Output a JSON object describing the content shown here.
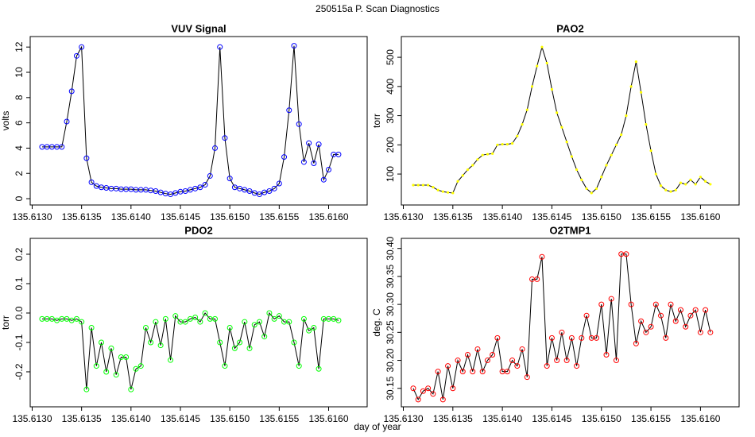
{
  "title": "250515a   P. Scan Diagnostics",
  "xlabel": "day of year",
  "chart_data": [
    {
      "type": "line",
      "title": "VUV Signal",
      "ylabel": "volts",
      "color": "#0000ff",
      "line_color": "#000000",
      "marker": "circle",
      "x": [
        135.6131,
        135.61315,
        135.6132,
        135.61325,
        135.6133,
        135.61335,
        135.6134,
        135.61345,
        135.6135,
        135.61355,
        135.6136,
        135.61365,
        135.6137,
        135.61375,
        135.6138,
        135.61385,
        135.6139,
        135.61395,
        135.614,
        135.61405,
        135.6141,
        135.61415,
        135.6142,
        135.61425,
        135.6143,
        135.61435,
        135.6144,
        135.61445,
        135.6145,
        135.61455,
        135.6146,
        135.61465,
        135.6147,
        135.61475,
        135.6148,
        135.61485,
        135.6149,
        135.61495,
        135.615,
        135.61505,
        135.6151,
        135.61515,
        135.6152,
        135.61525,
        135.6153,
        135.61535,
        135.6154,
        135.61545,
        135.6155,
        135.61555,
        135.6156,
        135.61565,
        135.6157,
        135.61575,
        135.6158,
        135.61585,
        135.6159,
        135.61595,
        135.616,
        135.61605,
        135.6161
      ],
      "values": [
        4.1,
        4.1,
        4.1,
        4.1,
        4.1,
        6.1,
        8.5,
        11.3,
        12.0,
        3.2,
        1.3,
        1.0,
        0.9,
        0.85,
        0.8,
        0.8,
        0.75,
        0.75,
        0.75,
        0.7,
        0.7,
        0.7,
        0.65,
        0.6,
        0.5,
        0.4,
        0.35,
        0.45,
        0.55,
        0.6,
        0.7,
        0.8,
        0.9,
        1.1,
        1.8,
        4.0,
        12.0,
        4.8,
        1.6,
        0.9,
        0.8,
        0.7,
        0.6,
        0.45,
        0.35,
        0.5,
        0.6,
        0.8,
        1.2,
        3.3,
        7.0,
        12.1,
        5.9,
        2.9,
        4.4,
        2.8,
        4.3,
        1.5,
        2.3,
        3.5,
        3.5
      ],
      "xlim": [
        135.61298,
        135.61639
      ],
      "ylim": [
        -0.5,
        12.83
      ],
      "xticks": [
        {
          "value": 135.613,
          "label": "135.6130"
        },
        135.6135,
        {
          "value": 135.614,
          "label": "135.6140"
        },
        135.6145,
        {
          "value": 135.615,
          "label": "135.6150"
        },
        135.6155,
        {
          "value": 135.616,
          "label": "135.6160"
        }
      ],
      "yticks": [
        0,
        2,
        4,
        6,
        8,
        10,
        12
      ]
    },
    {
      "type": "line",
      "title": "PAO2",
      "ylabel": "torr",
      "color": "#ffff00",
      "line_color": "#000000",
      "marker": "dot",
      "x": [
        135.6131,
        135.61315,
        135.6132,
        135.61325,
        135.6133,
        135.61335,
        135.6134,
        135.61345,
        135.6135,
        135.61355,
        135.6136,
        135.61365,
        135.6137,
        135.61375,
        135.6138,
        135.61385,
        135.6139,
        135.61395,
        135.614,
        135.61405,
        135.6141,
        135.61415,
        135.6142,
        135.61425,
        135.6143,
        135.61435,
        135.6144,
        135.61445,
        135.6145,
        135.61455,
        135.6146,
        135.61465,
        135.6147,
        135.61475,
        135.6148,
        135.61485,
        135.6149,
        135.61495,
        135.615,
        135.61505,
        135.6151,
        135.61515,
        135.6152,
        135.61525,
        135.6153,
        135.61535,
        135.6154,
        135.61545,
        135.6155,
        135.61555,
        135.6156,
        135.61565,
        135.6157,
        135.61575,
        135.6158,
        135.61585,
        135.6159,
        135.61595,
        135.616,
        135.61605,
        135.6161
      ],
      "values": [
        62,
        62,
        62,
        62,
        55,
        45,
        40,
        37,
        35,
        75,
        95,
        115,
        130,
        150,
        165,
        168,
        170,
        200,
        202,
        202,
        205,
        230,
        270,
        320,
        400,
        470,
        535,
        480,
        390,
        310,
        260,
        210,
        160,
        115,
        80,
        50,
        35,
        50,
        90,
        130,
        165,
        200,
        235,
        300,
        400,
        485,
        380,
        270,
        180,
        100,
        60,
        45,
        40,
        45,
        70,
        65,
        80,
        65,
        90,
        75,
        65
      ],
      "xlim": [
        135.61298,
        135.61639
      ],
      "ylim": [
        -6,
        571
      ],
      "xticks": [
        {
          "value": 135.613,
          "label": "135.6130"
        },
        135.6135,
        {
          "value": 135.614,
          "label": "135.6140"
        },
        135.6145,
        {
          "value": 135.615,
          "label": "135.6150"
        },
        135.6155,
        {
          "value": 135.616,
          "label": "135.6160"
        }
      ],
      "yticks": [
        100,
        200,
        300,
        400,
        500
      ]
    },
    {
      "type": "line",
      "title": "PDO2",
      "ylabel": "torr",
      "color": "#00ff00",
      "line_color": "#000000",
      "marker": "circle",
      "x": [
        135.6131,
        135.61315,
        135.6132,
        135.61325,
        135.6133,
        135.61335,
        135.6134,
        135.61345,
        135.6135,
        135.61355,
        135.6136,
        135.61365,
        135.6137,
        135.61375,
        135.6138,
        135.61385,
        135.6139,
        135.61395,
        135.614,
        135.61405,
        135.6141,
        135.61415,
        135.6142,
        135.61425,
        135.6143,
        135.61435,
        135.6144,
        135.61445,
        135.6145,
        135.61455,
        135.6146,
        135.61465,
        135.6147,
        135.61475,
        135.6148,
        135.61485,
        135.6149,
        135.61495,
        135.615,
        135.61505,
        135.6151,
        135.61515,
        135.6152,
        135.61525,
        135.6153,
        135.61535,
        135.6154,
        135.61545,
        135.6155,
        135.61555,
        135.6156,
        135.61565,
        135.6157,
        135.61575,
        135.6158,
        135.61585,
        135.6159,
        135.61595,
        135.616,
        135.61605,
        135.6161
      ],
      "values": [
        -0.02,
        -0.02,
        -0.02,
        -0.025,
        -0.02,
        -0.02,
        -0.025,
        -0.02,
        -0.03,
        -0.26,
        -0.05,
        -0.18,
        -0.1,
        -0.2,
        -0.12,
        -0.21,
        -0.15,
        -0.15,
        -0.26,
        -0.19,
        -0.18,
        -0.05,
        -0.1,
        -0.03,
        -0.11,
        -0.02,
        -0.16,
        -0.01,
        -0.03,
        -0.03,
        -0.02,
        -0.015,
        -0.03,
        0,
        -0.02,
        -0.02,
        -0.1,
        -0.18,
        -0.05,
        -0.12,
        -0.1,
        -0.03,
        -0.12,
        -0.04,
        -0.03,
        -0.08,
        0,
        -0.02,
        -0.01,
        -0.03,
        -0.03,
        -0.1,
        -0.18,
        -0.02,
        -0.06,
        -0.05,
        -0.19,
        -0.02,
        -0.02,
        -0.02,
        -0.025
      ],
      "xlim": [
        135.61298,
        135.61639
      ],
      "ylim": [
        -0.319,
        0.254
      ],
      "xticks": [
        {
          "value": 135.613,
          "label": "135.6130"
        },
        135.6135,
        {
          "value": 135.614,
          "label": "135.6140"
        },
        135.6145,
        {
          "value": 135.615,
          "label": "135.6150"
        },
        135.6155,
        {
          "value": 135.616,
          "label": "135.6160"
        }
      ],
      "yticks": [
        -0.2,
        -0.1,
        {
          "value": 0,
          "label": "0.0"
        },
        0.1,
        0.2
      ]
    },
    {
      "type": "line",
      "title": "O2TMP1",
      "ylabel": "deg. C",
      "color": "#ff0000",
      "line_color": "#000000",
      "marker": "circle",
      "x": [
        135.6131,
        135.61315,
        135.6132,
        135.61325,
        135.6133,
        135.61335,
        135.6134,
        135.61345,
        135.6135,
        135.61355,
        135.6136,
        135.61365,
        135.6137,
        135.61375,
        135.6138,
        135.61385,
        135.6139,
        135.61395,
        135.614,
        135.61405,
        135.6141,
        135.61415,
        135.6142,
        135.61425,
        135.6143,
        135.61435,
        135.6144,
        135.61445,
        135.6145,
        135.61455,
        135.6146,
        135.61465,
        135.6147,
        135.61475,
        135.6148,
        135.61485,
        135.6149,
        135.61495,
        135.615,
        135.61505,
        135.6151,
        135.61515,
        135.6152,
        135.61525,
        135.6153,
        135.61535,
        135.6154,
        135.61545,
        135.6155,
        135.61555,
        135.6156,
        135.61565,
        135.6157,
        135.61575,
        135.6158,
        135.61585,
        135.6159,
        135.61595,
        135.616,
        135.61605,
        135.6161
      ],
      "values": [
        30.15,
        30.13,
        30.145,
        30.15,
        30.14,
        30.18,
        30.13,
        30.19,
        30.15,
        30.2,
        30.18,
        30.21,
        30.18,
        30.22,
        30.18,
        30.2,
        30.21,
        30.24,
        30.18,
        30.18,
        30.2,
        30.19,
        30.22,
        30.17,
        30.345,
        30.345,
        30.385,
        30.19,
        30.24,
        30.2,
        30.25,
        30.2,
        30.24,
        30.19,
        30.24,
        30.28,
        30.24,
        30.24,
        30.3,
        30.21,
        30.31,
        30.2,
        30.39,
        30.39,
        30.3,
        30.23,
        30.27,
        30.25,
        30.26,
        30.3,
        30.28,
        30.24,
        30.3,
        30.27,
        30.29,
        30.26,
        30.28,
        30.29,
        30.25,
        30.29,
        30.25
      ],
      "xlim": [
        135.61298,
        135.61639
      ],
      "ylim": [
        30.117,
        30.418
      ],
      "xticks": [
        {
          "value": 135.613,
          "label": "135.6130"
        },
        135.6135,
        {
          "value": 135.614,
          "label": "135.6140"
        },
        135.6145,
        {
          "value": 135.615,
          "label": "135.6150"
        },
        135.6155,
        {
          "value": 135.616,
          "label": "135.6160"
        }
      ],
      "yticks": [
        30.15,
        {
          "value": 30.2,
          "label": "30.20"
        },
        30.25,
        {
          "value": 30.3,
          "label": "30.30"
        },
        30.35,
        {
          "value": 30.4,
          "label": "30.40"
        }
      ]
    }
  ]
}
